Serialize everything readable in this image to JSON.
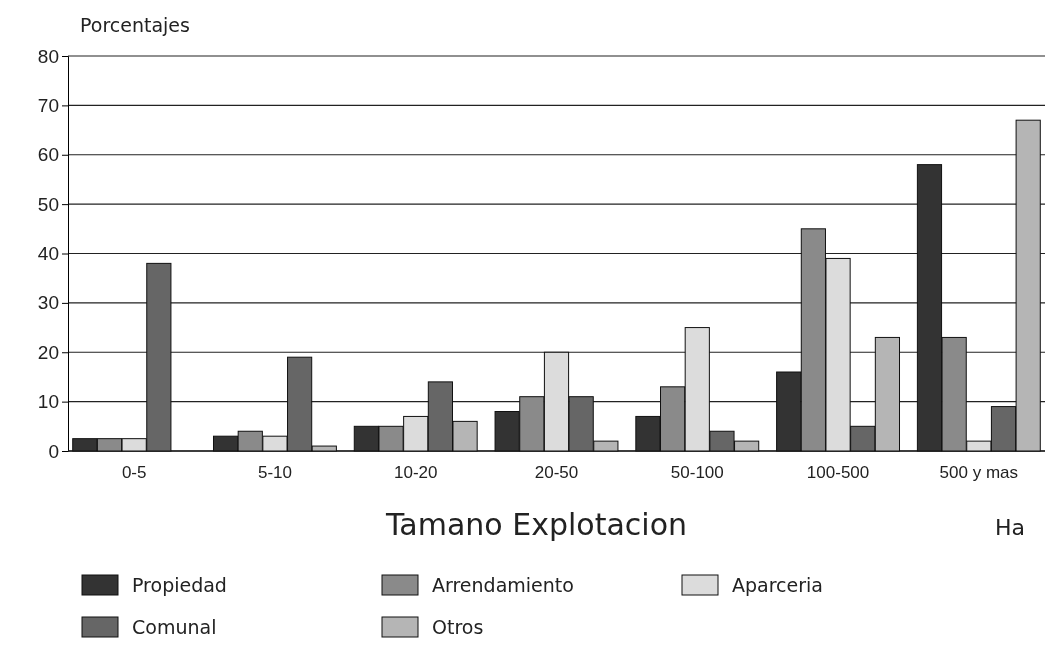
{
  "chart_data": {
    "type": "bar",
    "ylabel": "Porcentajes",
    "xlabel": "Tamano Explotacion",
    "annotations": [
      "Ha"
    ],
    "categories": [
      "0-5",
      "5-10",
      "10-20",
      "20-50",
      "50-100",
      "100-500",
      "500 y mas"
    ],
    "series": [
      {
        "name": "Propiedad",
        "color": "#333333",
        "values": [
          2.5,
          3,
          5,
          8,
          7,
          16,
          58
        ]
      },
      {
        "name": "Arrendamiento",
        "color": "#8a8a8a",
        "values": [
          2.5,
          4,
          5,
          11,
          13,
          45,
          23
        ]
      },
      {
        "name": "Aparceria",
        "color": "#dcdcdc",
        "values": [
          2.5,
          3,
          7,
          20,
          25,
          39,
          2
        ]
      },
      {
        "name": "Comunal",
        "color": "#666666",
        "values": [
          38,
          19,
          14,
          11,
          4,
          5,
          9
        ]
      },
      {
        "name": "Otros",
        "color": "#b5b5b5",
        "values": [
          0,
          1,
          6,
          2,
          2,
          23,
          67
        ]
      }
    ],
    "ylim": [
      0,
      80
    ],
    "yticks": [
      0,
      10,
      20,
      30,
      40,
      50,
      60,
      70,
      80
    ],
    "grid": "y",
    "legend": "bottom"
  }
}
